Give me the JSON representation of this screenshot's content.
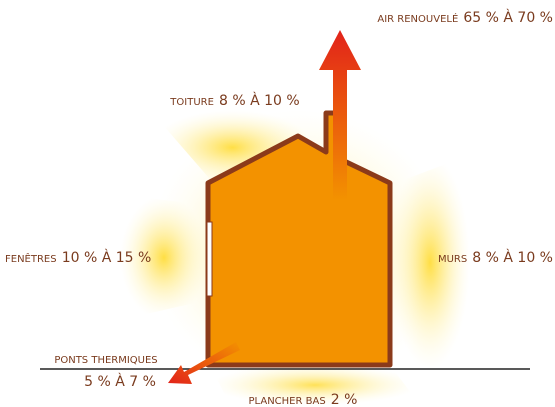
{
  "labels": [
    {
      "name": "AIR RENOUVELÉ",
      "value": "65 % À 70 %"
    },
    {
      "name": "TOITURE",
      "value": "8 % À 10 %"
    },
    {
      "name": "FENÊTRES",
      "value": "10 % À 15 %"
    },
    {
      "name": "MURS",
      "value": "8 % À 10 %"
    },
    {
      "name": "PONTS THERMIQUES",
      "value": "5 % À 7 %"
    },
    {
      "name": "PLANCHER BAS",
      "value": "2 %"
    }
  ]
}
